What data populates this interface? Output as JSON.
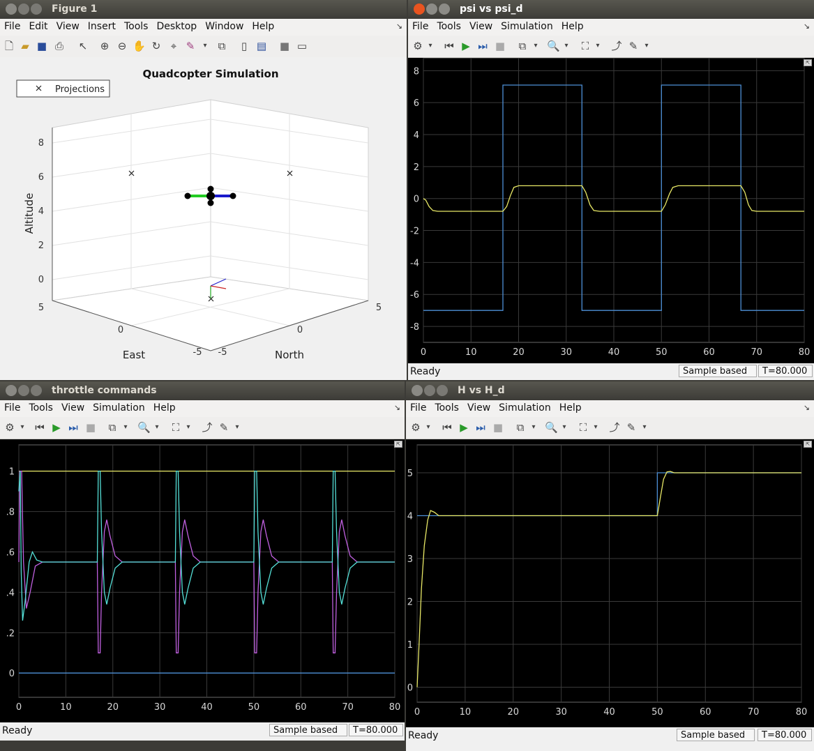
{
  "figure1": {
    "title": "Figure 1",
    "menus": [
      "File",
      "Edit",
      "View",
      "Insert",
      "Tools",
      "Desktop",
      "Window",
      "Help"
    ],
    "plot_title": "Quadcopter Simulation",
    "legend_label": "Projections",
    "zlabel": "Altitude",
    "xlabel": "East",
    "ylabel": "North",
    "z_ticks": [
      "8",
      "6",
      "4",
      "2",
      "0"
    ],
    "east_ticks": [
      "5",
      "0",
      "-5"
    ],
    "north_ticks": [
      "-5",
      "0",
      "5"
    ]
  },
  "psi": {
    "title": "psi vs psi_d",
    "menus": [
      "File",
      "Tools",
      "View",
      "Simulation",
      "Help"
    ],
    "status": {
      "ready": "Ready",
      "mode": "Sample based",
      "time": "T=80.000"
    },
    "chart_data": {
      "type": "line",
      "xlim": [
        0,
        80
      ],
      "ylim": [
        -9,
        8.8
      ],
      "xticks": [
        0,
        10,
        20,
        30,
        40,
        50,
        60,
        70,
        80
      ],
      "yticks": [
        8,
        6,
        4,
        2,
        0,
        -2,
        -4,
        -6,
        -8
      ],
      "series": [
        {
          "color": "#4d8fd6",
          "points": [
            [
              0,
              -7
            ],
            [
              16.7,
              -7
            ],
            [
              16.7,
              7.1
            ],
            [
              33.3,
              7.1
            ],
            [
              33.3,
              -7
            ],
            [
              50,
              -7
            ],
            [
              50,
              7.1
            ],
            [
              66.7,
              7.1
            ],
            [
              66.7,
              -7
            ],
            [
              80,
              -7
            ]
          ]
        },
        {
          "color": "#e8e866",
          "points": [
            [
              0,
              0
            ],
            [
              0.5,
              -0.1
            ],
            [
              1.2,
              -0.5
            ],
            [
              2,
              -0.75
            ],
            [
              3,
              -0.8
            ],
            [
              16.7,
              -0.8
            ],
            [
              17.5,
              -0.5
            ],
            [
              18.3,
              0.2
            ],
            [
              19,
              0.7
            ],
            [
              20,
              0.8
            ],
            [
              33.3,
              0.8
            ],
            [
              34.1,
              0.4
            ],
            [
              35,
              -0.4
            ],
            [
              35.8,
              -0.75
            ],
            [
              37,
              -0.8
            ],
            [
              50,
              -0.8
            ],
            [
              50.8,
              -0.4
            ],
            [
              51.7,
              0.3
            ],
            [
              52.4,
              0.7
            ],
            [
              53.5,
              0.8
            ],
            [
              66.7,
              0.8
            ],
            [
              67.5,
              0.4
            ],
            [
              68.3,
              -0.4
            ],
            [
              69,
              -0.75
            ],
            [
              70,
              -0.8
            ],
            [
              80,
              -0.8
            ]
          ]
        }
      ]
    }
  },
  "throttle": {
    "title": "throttle commands",
    "menus": [
      "File",
      "Tools",
      "View",
      "Simulation",
      "Help"
    ],
    "status": {
      "ready": "Ready",
      "mode": "Sample based",
      "time": "T=80.000"
    },
    "chart_data": {
      "type": "line",
      "xlim": [
        0,
        80
      ],
      "ylim": [
        -0.12,
        1.13
      ],
      "xticks": [
        0,
        10,
        20,
        30,
        40,
        50,
        60,
        70,
        80
      ],
      "yticks": [
        1,
        0.8,
        0.6,
        0.4,
        0.2,
        0
      ],
      "series": [
        {
          "color": "#4d8fd6",
          "points": [
            [
              0,
              0
            ],
            [
              80,
              0
            ]
          ]
        },
        {
          "color": "#e8e866",
          "points": [
            [
              0,
              1
            ],
            [
              80,
              1
            ]
          ]
        },
        {
          "color": "#c060e0",
          "points": [
            [
              0,
              0.55
            ],
            [
              0.2,
              1
            ],
            [
              0.6,
              1
            ],
            [
              1,
              0.55
            ],
            [
              1.6,
              0.32
            ],
            [
              2.4,
              0.4
            ],
            [
              3.5,
              0.53
            ],
            [
              5,
              0.55
            ],
            [
              16.7,
              0.55
            ],
            [
              16.9,
              0.1
            ],
            [
              17.3,
              0.1
            ],
            [
              17.6,
              0.4
            ],
            [
              18.2,
              0.7
            ],
            [
              18.7,
              0.76
            ],
            [
              19.4,
              0.68
            ],
            [
              20.5,
              0.58
            ],
            [
              22,
              0.55
            ],
            [
              33.3,
              0.55
            ],
            [
              33.5,
              0.1
            ],
            [
              33.9,
              0.1
            ],
            [
              34.2,
              0.4
            ],
            [
              34.8,
              0.7
            ],
            [
              35.3,
              0.76
            ],
            [
              36,
              0.68
            ],
            [
              37.1,
              0.58
            ],
            [
              38.6,
              0.55
            ],
            [
              50,
              0.55
            ],
            [
              50.2,
              0.1
            ],
            [
              50.6,
              0.1
            ],
            [
              50.9,
              0.4
            ],
            [
              51.5,
              0.7
            ],
            [
              52,
              0.76
            ],
            [
              52.7,
              0.68
            ],
            [
              53.8,
              0.58
            ],
            [
              55.3,
              0.55
            ],
            [
              66.7,
              0.55
            ],
            [
              66.9,
              0.1
            ],
            [
              67.3,
              0.1
            ],
            [
              67.6,
              0.4
            ],
            [
              68.2,
              0.7
            ],
            [
              68.7,
              0.76
            ],
            [
              69.4,
              0.68
            ],
            [
              70.5,
              0.58
            ],
            [
              72,
              0.55
            ],
            [
              80,
              0.55
            ]
          ]
        },
        {
          "color": "#55e0d8",
          "points": [
            [
              0,
              0.9
            ],
            [
              0.3,
              1
            ],
            [
              0.5,
              0.5
            ],
            [
              0.8,
              0.26
            ],
            [
              1.3,
              0.35
            ],
            [
              2.2,
              0.55
            ],
            [
              2.9,
              0.6
            ],
            [
              3.8,
              0.56
            ],
            [
              5,
              0.55
            ],
            [
              16.7,
              0.55
            ],
            [
              16.9,
              1
            ],
            [
              17.3,
              1
            ],
            [
              17.6,
              0.7
            ],
            [
              18.2,
              0.4
            ],
            [
              18.7,
              0.34
            ],
            [
              19.4,
              0.42
            ],
            [
              20.5,
              0.52
            ],
            [
              22,
              0.55
            ],
            [
              33.3,
              0.55
            ],
            [
              33.5,
              1
            ],
            [
              33.9,
              1
            ],
            [
              34.2,
              0.7
            ],
            [
              34.8,
              0.4
            ],
            [
              35.3,
              0.34
            ],
            [
              36,
              0.42
            ],
            [
              37.1,
              0.52
            ],
            [
              38.6,
              0.55
            ],
            [
              50,
              0.55
            ],
            [
              50.2,
              1
            ],
            [
              50.6,
              1
            ],
            [
              50.9,
              0.7
            ],
            [
              51.5,
              0.4
            ],
            [
              52,
              0.34
            ],
            [
              52.7,
              0.42
            ],
            [
              53.8,
              0.52
            ],
            [
              55.3,
              0.55
            ],
            [
              66.7,
              0.55
            ],
            [
              66.9,
              1
            ],
            [
              67.3,
              1
            ],
            [
              67.6,
              0.7
            ],
            [
              68.2,
              0.4
            ],
            [
              68.7,
              0.34
            ],
            [
              69.4,
              0.42
            ],
            [
              70.5,
              0.52
            ],
            [
              72,
              0.55
            ],
            [
              80,
              0.55
            ]
          ]
        }
      ]
    }
  },
  "height": {
    "title": "H vs H_d",
    "menus": [
      "File",
      "Tools",
      "View",
      "Simulation",
      "Help"
    ],
    "status": {
      "ready": "Ready",
      "mode": "Sample based",
      "time": "T=80.000"
    },
    "chart_data": {
      "type": "line",
      "xlim": [
        0,
        80
      ],
      "ylim": [
        -0.35,
        5.65
      ],
      "xticks": [
        0,
        10,
        20,
        30,
        40,
        50,
        60,
        70,
        80
      ],
      "yticks": [
        5,
        4,
        3,
        2,
        1,
        0
      ],
      "series": [
        {
          "color": "#4d8fd6",
          "points": [
            [
              0,
              4
            ],
            [
              50,
              4
            ],
            [
              50,
              5
            ],
            [
              80,
              5
            ]
          ]
        },
        {
          "color": "#e8e866",
          "points": [
            [
              0,
              0
            ],
            [
              0.4,
              1
            ],
            [
              0.9,
              2.3
            ],
            [
              1.5,
              3.3
            ],
            [
              2.2,
              3.9
            ],
            [
              2.8,
              4.12
            ],
            [
              3.6,
              4.08
            ],
            [
              4.5,
              4
            ],
            [
              50,
              4
            ],
            [
              50.6,
              4.4
            ],
            [
              51.3,
              4.85
            ],
            [
              52,
              5.02
            ],
            [
              52.7,
              5.03
            ],
            [
              53.5,
              5
            ],
            [
              80,
              5
            ]
          ]
        }
      ]
    }
  }
}
